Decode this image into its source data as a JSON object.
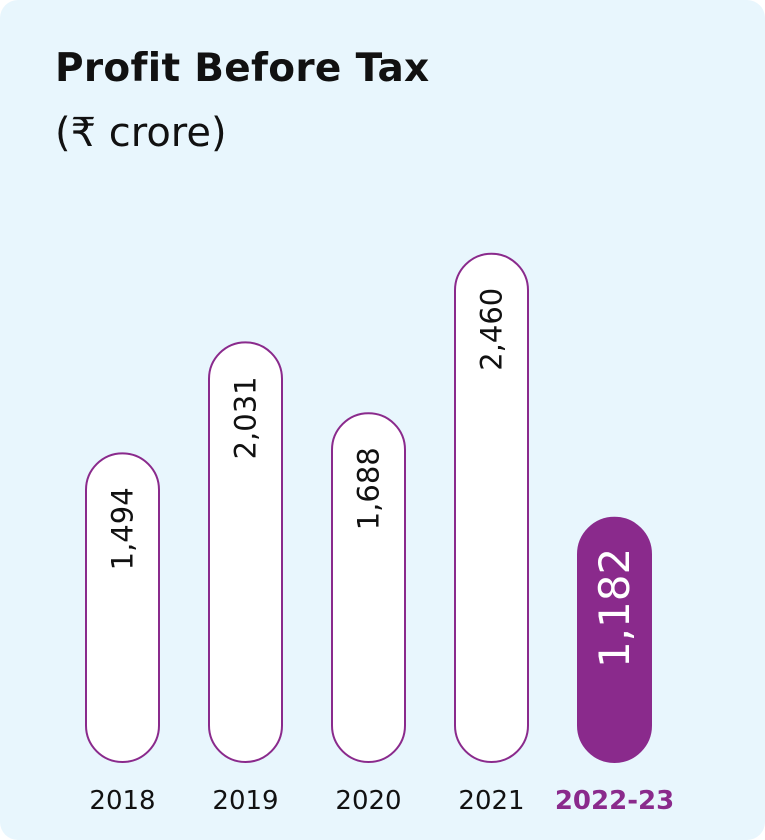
{
  "chart_data": {
    "type": "bar",
    "title": "Profit Before Tax",
    "subtitle": "(₹ crore)",
    "categories": [
      "2018",
      "2019",
      "2020",
      "2021",
      "2022-23"
    ],
    "values": [
      1494,
      2031,
      1688,
      2460,
      1182
    ],
    "value_labels": [
      "1,494",
      "2,031",
      "1,688",
      "2,460",
      "1,182"
    ],
    "highlight_index": 4,
    "orientation": "vertical",
    "value_label_rotation": "vertical",
    "grid": false,
    "legend": "none"
  },
  "colors": {
    "background": "#e8f6fd",
    "bar_fill": "#ffffff",
    "bar_outline": "#8a2a8c",
    "highlight_fill": "#8a2a8c",
    "highlight_text": "#ffffff",
    "text": "#111111"
  }
}
